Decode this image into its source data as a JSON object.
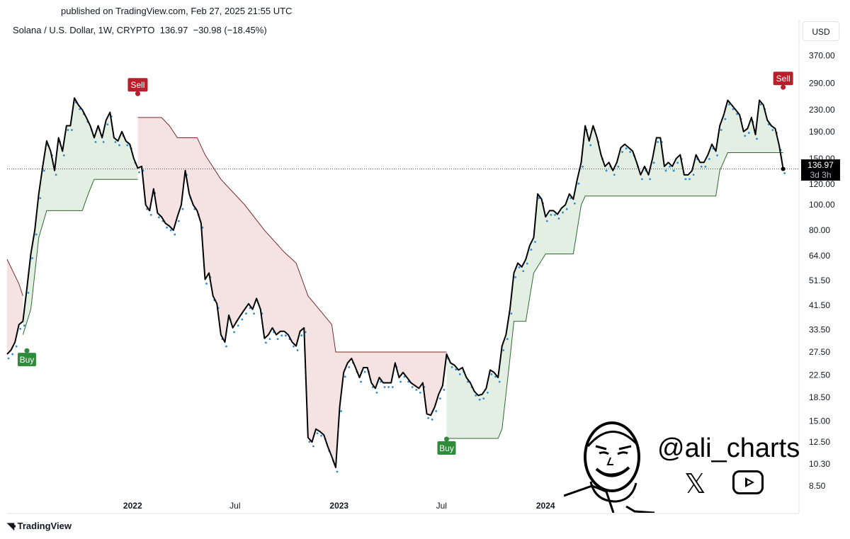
{
  "header": {
    "published": "published on TradingView.com, Feb 27, 2025 21:55 UTC",
    "symbol_line": "Solana / U.S. Dollar, 1W, CRYPTO  136.97  −30.98 (−18.45%)",
    "currency": "USD"
  },
  "price_tag": {
    "price": "136.97",
    "countdown": "3d 3h"
  },
  "footer": {
    "brand": "TradingView"
  },
  "branding": {
    "handle": "@ali_charts",
    "x_icon": "x-logo-icon",
    "youtube_icon": "youtube-play-icon"
  },
  "colors": {
    "price_line": "#000000",
    "support_line": "#2e6b2e",
    "resistance_line": "#7b2b2b",
    "support_fill": "#e3efe3",
    "resistance_fill": "#f5e3e3",
    "buy": "#2f8a3a",
    "sell": "#b91f2a",
    "dots": "#2f8bd8"
  },
  "chart_data": {
    "type": "line",
    "scale": "log",
    "ylim": [
      7.8,
      420
    ],
    "xlim": [
      "2021-05-24",
      "2025-03-24"
    ],
    "y_ticks": [
      {
        "value": 370,
        "label": "370.00"
      },
      {
        "value": 290,
        "label": "290.00"
      },
      {
        "value": 230,
        "label": "230.00"
      },
      {
        "value": 190,
        "label": "190.00"
      },
      {
        "value": 150,
        "label": "150.00"
      },
      {
        "value": 120,
        "label": "120.00"
      },
      {
        "value": 100,
        "label": "100.00"
      },
      {
        "value": 80,
        "label": "80.00"
      },
      {
        "value": 64,
        "label": "64.00"
      },
      {
        "value": 51.5,
        "label": "51.50"
      },
      {
        "value": 41.5,
        "label": "41.50"
      },
      {
        "value": 33.5,
        "label": "33.50"
      },
      {
        "value": 27.5,
        "label": "27.50"
      },
      {
        "value": 22.5,
        "label": "22.50"
      },
      {
        "value": 18.5,
        "label": "18.50"
      },
      {
        "value": 15,
        "label": "15.00"
      },
      {
        "value": 12.5,
        "label": "12.50"
      },
      {
        "value": 10.3,
        "label": "10.30"
      },
      {
        "value": 8.5,
        "label": "8.50"
      }
    ],
    "x_ticks": [
      {
        "date": "2022-01-01",
        "label": "2022",
        "bold": true
      },
      {
        "date": "2022-07-01",
        "label": "Jul",
        "bold": false
      },
      {
        "date": "2023-01-01",
        "label": "2023",
        "bold": true
      },
      {
        "date": "2023-07-01",
        "label": "Jul",
        "bold": false
      },
      {
        "date": "2024-01-01",
        "label": "2024",
        "bold": true
      }
    ],
    "series": [
      {
        "name": "Solana / U.S. Dollar",
        "points": [
          [
            "2021-05-24",
            27
          ],
          [
            "2021-05-31",
            28
          ],
          [
            "2021-06-07",
            30
          ],
          [
            "2021-06-14",
            35
          ],
          [
            "2021-06-21",
            36
          ],
          [
            "2021-06-28",
            48
          ],
          [
            "2021-07-05",
            65
          ],
          [
            "2021-07-12",
            80
          ],
          [
            "2021-07-19",
            110
          ],
          [
            "2021-07-26",
            140
          ],
          [
            "2021-08-02",
            175
          ],
          [
            "2021-08-09",
            160
          ],
          [
            "2021-08-16",
            135
          ],
          [
            "2021-08-23",
            180
          ],
          [
            "2021-08-30",
            160
          ],
          [
            "2021-09-06",
            200
          ],
          [
            "2021-09-13",
            200
          ],
          [
            "2021-09-20",
            255
          ],
          [
            "2021-09-27",
            240
          ],
          [
            "2021-10-04",
            230
          ],
          [
            "2021-10-11",
            215
          ],
          [
            "2021-10-18",
            200
          ],
          [
            "2021-10-25",
            180
          ],
          [
            "2021-11-01",
            200
          ],
          [
            "2021-11-08",
            180
          ],
          [
            "2021-11-15",
            210
          ],
          [
            "2021-11-22",
            225
          ],
          [
            "2021-11-29",
            180
          ],
          [
            "2021-12-06",
            175
          ],
          [
            "2021-12-13",
            190
          ],
          [
            "2021-12-20",
            175
          ],
          [
            "2021-12-27",
            170
          ],
          [
            "2022-01-03",
            150
          ],
          [
            "2022-01-10",
            138
          ],
          [
            "2022-01-17",
            140
          ],
          [
            "2022-01-24",
            100
          ],
          [
            "2022-01-31",
            95
          ],
          [
            "2022-02-07",
            115
          ],
          [
            "2022-02-14",
            93
          ],
          [
            "2022-02-21",
            90
          ],
          [
            "2022-02-28",
            85
          ],
          [
            "2022-03-07",
            83
          ],
          [
            "2022-03-14",
            80
          ],
          [
            "2022-03-21",
            90
          ],
          [
            "2022-03-28",
            100
          ],
          [
            "2022-04-04",
            135
          ],
          [
            "2022-04-11",
            110
          ],
          [
            "2022-04-18",
            100
          ],
          [
            "2022-04-25",
            95
          ],
          [
            "2022-05-02",
            85
          ],
          [
            "2022-05-09",
            52
          ],
          [
            "2022-05-16",
            55
          ],
          [
            "2022-05-23",
            45
          ],
          [
            "2022-05-30",
            42
          ],
          [
            "2022-06-06",
            32
          ],
          [
            "2022-06-13",
            30
          ],
          [
            "2022-06-20",
            38
          ],
          [
            "2022-06-27",
            34
          ],
          [
            "2022-07-04",
            36
          ],
          [
            "2022-07-11",
            38
          ],
          [
            "2022-07-18",
            40
          ],
          [
            "2022-07-25",
            42
          ],
          [
            "2022-08-01",
            40
          ],
          [
            "2022-08-08",
            44
          ],
          [
            "2022-08-15",
            40
          ],
          [
            "2022-08-22",
            31
          ],
          [
            "2022-08-29",
            32
          ],
          [
            "2022-09-05",
            34
          ],
          [
            "2022-09-12",
            32
          ],
          [
            "2022-09-19",
            33
          ],
          [
            "2022-09-26",
            33
          ],
          [
            "2022-10-03",
            32
          ],
          [
            "2022-10-10",
            30
          ],
          [
            "2022-10-17",
            29
          ],
          [
            "2022-10-24",
            33
          ],
          [
            "2022-10-31",
            34
          ],
          [
            "2022-11-07",
            13
          ],
          [
            "2022-11-14",
            12.5
          ],
          [
            "2022-11-21",
            14
          ],
          [
            "2022-11-28",
            13.7
          ],
          [
            "2022-12-05",
            13.3
          ],
          [
            "2022-12-12",
            12
          ],
          [
            "2022-12-19",
            11
          ],
          [
            "2022-12-26",
            10
          ],
          [
            "2023-01-02",
            17
          ],
          [
            "2023-01-09",
            23
          ],
          [
            "2023-01-16",
            25
          ],
          [
            "2023-01-23",
            26
          ],
          [
            "2023-01-30",
            24
          ],
          [
            "2023-02-06",
            22
          ],
          [
            "2023-02-13",
            24
          ],
          [
            "2023-02-20",
            24
          ],
          [
            "2023-02-27",
            21
          ],
          [
            "2023-03-06",
            20
          ],
          [
            "2023-03-13",
            22
          ],
          [
            "2023-03-20",
            21
          ],
          [
            "2023-03-27",
            21
          ],
          [
            "2023-04-03",
            21
          ],
          [
            "2023-04-10",
            25
          ],
          [
            "2023-04-17",
            22
          ],
          [
            "2023-04-24",
            23
          ],
          [
            "2023-05-01",
            22
          ],
          [
            "2023-05-08",
            21
          ],
          [
            "2023-05-15",
            20.5
          ],
          [
            "2023-05-22",
            20
          ],
          [
            "2023-05-29",
            21
          ],
          [
            "2023-06-05",
            16
          ],
          [
            "2023-06-12",
            15.8
          ],
          [
            "2023-06-19",
            17
          ],
          [
            "2023-06-26",
            19
          ],
          [
            "2023-07-03",
            20.5
          ],
          [
            "2023-07-10",
            27
          ],
          [
            "2023-07-17",
            25
          ],
          [
            "2023-07-24",
            24.5
          ],
          [
            "2023-07-31",
            23.5
          ],
          [
            "2023-08-07",
            24
          ],
          [
            "2023-08-14",
            22
          ],
          [
            "2023-08-21",
            21
          ],
          [
            "2023-08-28",
            19.5
          ],
          [
            "2023-09-04",
            18.8
          ],
          [
            "2023-09-11",
            19
          ],
          [
            "2023-09-18",
            20
          ],
          [
            "2023-09-25",
            23.5
          ],
          [
            "2023-10-02",
            23
          ],
          [
            "2023-10-09",
            22
          ],
          [
            "2023-10-16",
            29
          ],
          [
            "2023-10-23",
            32
          ],
          [
            "2023-10-30",
            40
          ],
          [
            "2023-11-06",
            55
          ],
          [
            "2023-11-13",
            60
          ],
          [
            "2023-11-20",
            58
          ],
          [
            "2023-11-27",
            62
          ],
          [
            "2023-12-04",
            70
          ],
          [
            "2023-12-11",
            75
          ],
          [
            "2023-12-18",
            110
          ],
          [
            "2023-12-25",
            105
          ],
          [
            "2024-01-01",
            90
          ],
          [
            "2024-01-08",
            95
          ],
          [
            "2024-01-15",
            95
          ],
          [
            "2024-01-22",
            92
          ],
          [
            "2024-01-29",
            97
          ],
          [
            "2024-02-05",
            100
          ],
          [
            "2024-02-12",
            110
          ],
          [
            "2024-02-19",
            105
          ],
          [
            "2024-02-26",
            125
          ],
          [
            "2024-03-04",
            145
          ],
          [
            "2024-03-11",
            200
          ],
          [
            "2024-03-18",
            175
          ],
          [
            "2024-03-25",
            200
          ],
          [
            "2024-04-01",
            180
          ],
          [
            "2024-04-08",
            155
          ],
          [
            "2024-04-15",
            140
          ],
          [
            "2024-04-22",
            145
          ],
          [
            "2024-04-29",
            135
          ],
          [
            "2024-05-06",
            145
          ],
          [
            "2024-05-13",
            165
          ],
          [
            "2024-05-20",
            170
          ],
          [
            "2024-05-27",
            165
          ],
          [
            "2024-06-03",
            160
          ],
          [
            "2024-06-10",
            145
          ],
          [
            "2024-06-17",
            130
          ],
          [
            "2024-06-24",
            140
          ],
          [
            "2024-07-01",
            130
          ],
          [
            "2024-07-08",
            150
          ],
          [
            "2024-07-15",
            180
          ],
          [
            "2024-07-22",
            180
          ],
          [
            "2024-07-29",
            140
          ],
          [
            "2024-08-05",
            145
          ],
          [
            "2024-08-12",
            140
          ],
          [
            "2024-08-19",
            150
          ],
          [
            "2024-08-26",
            155
          ],
          [
            "2024-09-02",
            130
          ],
          [
            "2024-09-09",
            130
          ],
          [
            "2024-09-16",
            135
          ],
          [
            "2024-09-23",
            155
          ],
          [
            "2024-09-30",
            145
          ],
          [
            "2024-10-07",
            145
          ],
          [
            "2024-10-14",
            155
          ],
          [
            "2024-10-21",
            170
          ],
          [
            "2024-10-28",
            160
          ],
          [
            "2024-11-04",
            200
          ],
          [
            "2024-11-11",
            220
          ],
          [
            "2024-11-18",
            250
          ],
          [
            "2024-11-25",
            240
          ],
          [
            "2024-12-02",
            230
          ],
          [
            "2024-12-09",
            220
          ],
          [
            "2024-12-16",
            190
          ],
          [
            "2024-12-23",
            195
          ],
          [
            "2024-12-30",
            215
          ],
          [
            "2025-01-06",
            185
          ],
          [
            "2025-01-13",
            250
          ],
          [
            "2025-01-20",
            240
          ],
          [
            "2025-01-27",
            210
          ],
          [
            "2025-02-03",
            200
          ],
          [
            "2025-02-10",
            195
          ],
          [
            "2025-02-17",
            168
          ],
          [
            "2025-02-24",
            136.97
          ]
        ]
      }
    ],
    "supertrend": {
      "support_segments": [
        [
          [
            "2021-06-21",
            32
          ],
          [
            "2021-07-05",
            40
          ],
          [
            "2021-07-19",
            75
          ],
          [
            "2021-08-02",
            95
          ],
          [
            "2021-10-04",
            95
          ],
          [
            "2021-10-11",
            105
          ],
          [
            "2021-10-18",
            115
          ],
          [
            "2021-10-25",
            125
          ],
          [
            "2022-01-10",
            125
          ]
        ],
        [
          [
            "2023-07-10",
            12.9
          ],
          [
            "2023-10-09",
            12.9
          ],
          [
            "2023-10-16",
            14
          ],
          [
            "2023-10-30",
            26
          ],
          [
            "2023-11-06",
            36
          ],
          [
            "2023-11-27",
            36
          ],
          [
            "2023-12-11",
            55
          ],
          [
            "2024-01-01",
            65
          ],
          [
            "2024-02-19",
            65
          ],
          [
            "2024-03-04",
            100
          ],
          [
            "2024-03-11",
            108
          ],
          [
            "2024-10-28",
            108
          ],
          [
            "2024-11-04",
            135
          ],
          [
            "2024-11-18",
            158
          ],
          [
            "2025-02-24",
            158
          ]
        ]
      ],
      "resistance_segments": [
        [
          [
            "2021-05-24",
            62
          ],
          [
            "2021-06-14",
            50
          ],
          [
            "2021-06-21",
            45
          ]
        ],
        [
          [
            "2022-01-10",
            215
          ],
          [
            "2022-02-21",
            215
          ],
          [
            "2022-03-07",
            200
          ],
          [
            "2022-03-21",
            180
          ],
          [
            "2022-04-25",
            180
          ],
          [
            "2022-05-09",
            155
          ],
          [
            "2022-06-06",
            125
          ],
          [
            "2022-07-18",
            100
          ],
          [
            "2022-08-22",
            80
          ],
          [
            "2022-09-26",
            66
          ],
          [
            "2022-10-17",
            60
          ],
          [
            "2022-11-07",
            45
          ],
          [
            "2022-12-19",
            35
          ],
          [
            "2022-12-26",
            27.5
          ],
          [
            "2023-07-10",
            27.5
          ]
        ]
      ]
    },
    "signals": [
      {
        "type": "Buy",
        "date": "2021-06-28",
        "value": 28
      },
      {
        "type": "Sell",
        "date": "2022-01-10",
        "value": 260
      },
      {
        "type": "Buy",
        "date": "2023-07-10",
        "value": 12.9
      },
      {
        "type": "Sell",
        "date": "2025-02-24",
        "value": 275
      }
    ],
    "last_price": 136.97
  }
}
